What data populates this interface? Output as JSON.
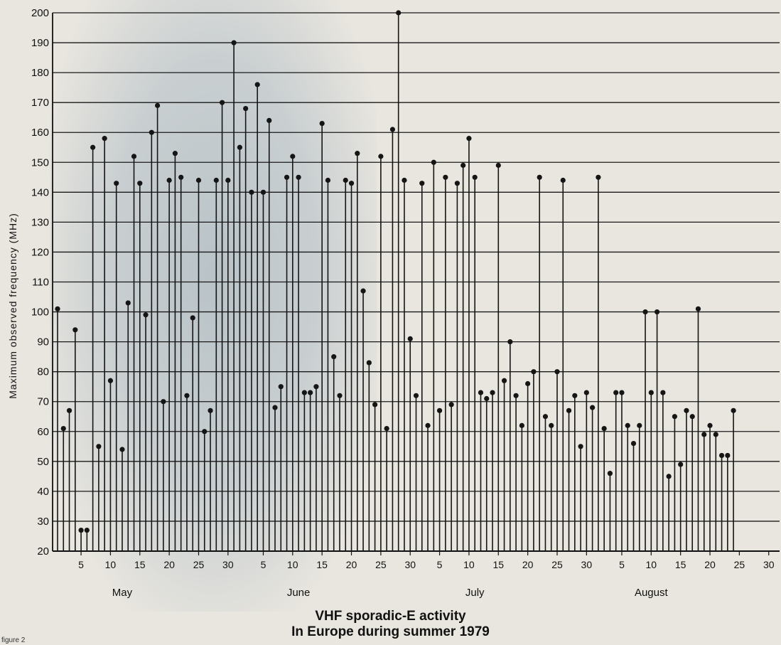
{
  "chart_data": {
    "type": "stem",
    "title": "VHF sporadic-E activity",
    "subtitle": "In Europe during summer 1979",
    "ylabel": "Maximum observed frequency (MHz)",
    "ylim": [
      20,
      200
    ],
    "yticks": [
      20,
      30,
      40,
      50,
      60,
      70,
      80,
      90,
      100,
      110,
      120,
      130,
      140,
      150,
      160,
      170,
      180,
      190,
      200
    ],
    "x_day_range": [
      1,
      123
    ],
    "x_ticks": [
      {
        "day": 5,
        "label": "5"
      },
      {
        "day": 10,
        "label": "10"
      },
      {
        "day": 15,
        "label": "15"
      },
      {
        "day": 20,
        "label": "20"
      },
      {
        "day": 25,
        "label": "25"
      },
      {
        "day": 30,
        "label": "30"
      },
      {
        "day": 36,
        "label": "5"
      },
      {
        "day": 41,
        "label": "10"
      },
      {
        "day": 46,
        "label": "15"
      },
      {
        "day": 51,
        "label": "20"
      },
      {
        "day": 56,
        "label": "25"
      },
      {
        "day": 61,
        "label": "30"
      },
      {
        "day": 66,
        "label": "5"
      },
      {
        "day": 71,
        "label": "10"
      },
      {
        "day": 76,
        "label": "15"
      },
      {
        "day": 81,
        "label": "20"
      },
      {
        "day": 86,
        "label": "25"
      },
      {
        "day": 91,
        "label": "30"
      },
      {
        "day": 97,
        "label": "5"
      },
      {
        "day": 102,
        "label": "10"
      },
      {
        "day": 107,
        "label": "15"
      },
      {
        "day": 112,
        "label": "20"
      },
      {
        "day": 117,
        "label": "25"
      },
      {
        "day": 122,
        "label": "30"
      }
    ],
    "months": [
      {
        "label": "May",
        "day": 12
      },
      {
        "label": "June",
        "day": 42
      },
      {
        "label": "July",
        "day": 72
      },
      {
        "label": "August",
        "day": 102
      }
    ],
    "grid": true,
    "points": [
      {
        "day": 1,
        "mhz": 101
      },
      {
        "day": 2,
        "mhz": 61
      },
      {
        "day": 3,
        "mhz": 67
      },
      {
        "day": 4,
        "mhz": 94
      },
      {
        "day": 5,
        "mhz": 27
      },
      {
        "day": 6,
        "mhz": 27
      },
      {
        "day": 7,
        "mhz": 155
      },
      {
        "day": 8,
        "mhz": 55
      },
      {
        "day": 9,
        "mhz": 158
      },
      {
        "day": 10,
        "mhz": 77
      },
      {
        "day": 11,
        "mhz": 143
      },
      {
        "day": 12,
        "mhz": 54
      },
      {
        "day": 13,
        "mhz": 103
      },
      {
        "day": 14,
        "mhz": 152
      },
      {
        "day": 15,
        "mhz": 143
      },
      {
        "day": 16,
        "mhz": 99
      },
      {
        "day": 17,
        "mhz": 160
      },
      {
        "day": 18,
        "mhz": 169
      },
      {
        "day": 19,
        "mhz": 70
      },
      {
        "day": 20,
        "mhz": 144
      },
      {
        "day": 21,
        "mhz": 153
      },
      {
        "day": 22,
        "mhz": 145
      },
      {
        "day": 23,
        "mhz": 72
      },
      {
        "day": 24,
        "mhz": 98
      },
      {
        "day": 25,
        "mhz": 144
      },
      {
        "day": 26,
        "mhz": 60
      },
      {
        "day": 27,
        "mhz": 67
      },
      {
        "day": 28,
        "mhz": 144
      },
      {
        "day": 29,
        "mhz": 170
      },
      {
        "day": 30,
        "mhz": 144
      },
      {
        "day": 31,
        "mhz": 190
      },
      {
        "day": 32,
        "mhz": 155
      },
      {
        "day": 33,
        "mhz": 168
      },
      {
        "day": 34,
        "mhz": 140
      },
      {
        "day": 35,
        "mhz": 176
      },
      {
        "day": 36,
        "mhz": 140
      },
      {
        "day": 37,
        "mhz": 164
      },
      {
        "day": 38,
        "mhz": 68
      },
      {
        "day": 39,
        "mhz": 75
      },
      {
        "day": 40,
        "mhz": 145
      },
      {
        "day": 41,
        "mhz": 152
      },
      {
        "day": 42,
        "mhz": 145
      },
      {
        "day": 43,
        "mhz": 73
      },
      {
        "day": 44,
        "mhz": 73
      },
      {
        "day": 45,
        "mhz": 75
      },
      {
        "day": 46,
        "mhz": 163
      },
      {
        "day": 47,
        "mhz": 144
      },
      {
        "day": 48,
        "mhz": 85
      },
      {
        "day": 49,
        "mhz": 72
      },
      {
        "day": 50,
        "mhz": 144
      },
      {
        "day": 51,
        "mhz": 143
      },
      {
        "day": 52,
        "mhz": 153
      },
      {
        "day": 53,
        "mhz": 107
      },
      {
        "day": 54,
        "mhz": 83
      },
      {
        "day": 55,
        "mhz": 69
      },
      {
        "day": 56,
        "mhz": 152
      },
      {
        "day": 57,
        "mhz": 61
      },
      {
        "day": 58,
        "mhz": 161
      },
      {
        "day": 59,
        "mhz": 200
      },
      {
        "day": 60,
        "mhz": 144
      },
      {
        "day": 61,
        "mhz": 91
      },
      {
        "day": 62,
        "mhz": 72
      },
      {
        "day": 63,
        "mhz": 143
      },
      {
        "day": 64,
        "mhz": 62
      },
      {
        "day": 65,
        "mhz": 150
      },
      {
        "day": 66,
        "mhz": 67
      },
      {
        "day": 67,
        "mhz": 145
      },
      {
        "day": 68,
        "mhz": 69
      },
      {
        "day": 69,
        "mhz": 143
      },
      {
        "day": 70,
        "mhz": 149
      },
      {
        "day": 71,
        "mhz": 158
      },
      {
        "day": 72,
        "mhz": 145
      },
      {
        "day": 73,
        "mhz": 73
      },
      {
        "day": 74,
        "mhz": 71
      },
      {
        "day": 75,
        "mhz": 73
      },
      {
        "day": 76,
        "mhz": 149
      },
      {
        "day": 77,
        "mhz": 77
      },
      {
        "day": 78,
        "mhz": 90
      },
      {
        "day": 79,
        "mhz": 72
      },
      {
        "day": 80,
        "mhz": 62
      },
      {
        "day": 81,
        "mhz": 76
      },
      {
        "day": 82,
        "mhz": 80
      },
      {
        "day": 83,
        "mhz": 145
      },
      {
        "day": 84,
        "mhz": 65
      },
      {
        "day": 85,
        "mhz": 62
      },
      {
        "day": 86,
        "mhz": 80
      },
      {
        "day": 87,
        "mhz": 144
      },
      {
        "day": 88,
        "mhz": 67
      },
      {
        "day": 89,
        "mhz": 72
      },
      {
        "day": 90,
        "mhz": 55
      },
      {
        "day": 91,
        "mhz": 73
      },
      {
        "day": 92,
        "mhz": 68
      },
      {
        "day": 93,
        "mhz": 145
      },
      {
        "day": 94,
        "mhz": 61
      },
      {
        "day": 95,
        "mhz": 46
      },
      {
        "day": 96,
        "mhz": 73
      },
      {
        "day": 97,
        "mhz": 73
      },
      {
        "day": 98,
        "mhz": 62
      },
      {
        "day": 99,
        "mhz": 56
      },
      {
        "day": 100,
        "mhz": 62
      },
      {
        "day": 101,
        "mhz": 100
      },
      {
        "day": 102,
        "mhz": 73
      },
      {
        "day": 103,
        "mhz": 100
      },
      {
        "day": 104,
        "mhz": 73
      },
      {
        "day": 105,
        "mhz": 45
      },
      {
        "day": 106,
        "mhz": 65
      },
      {
        "day": 107,
        "mhz": 49
      },
      {
        "day": 108,
        "mhz": 67
      },
      {
        "day": 109,
        "mhz": 65
      },
      {
        "day": 110,
        "mhz": 101
      },
      {
        "day": 111,
        "mhz": 59
      },
      {
        "day": 112,
        "mhz": 62
      },
      {
        "day": 113,
        "mhz": 59
      },
      {
        "day": 114,
        "mhz": 52
      },
      {
        "day": 115,
        "mhz": 52
      },
      {
        "day": 116,
        "mhz": 67
      }
    ]
  },
  "caption": "figure 2"
}
